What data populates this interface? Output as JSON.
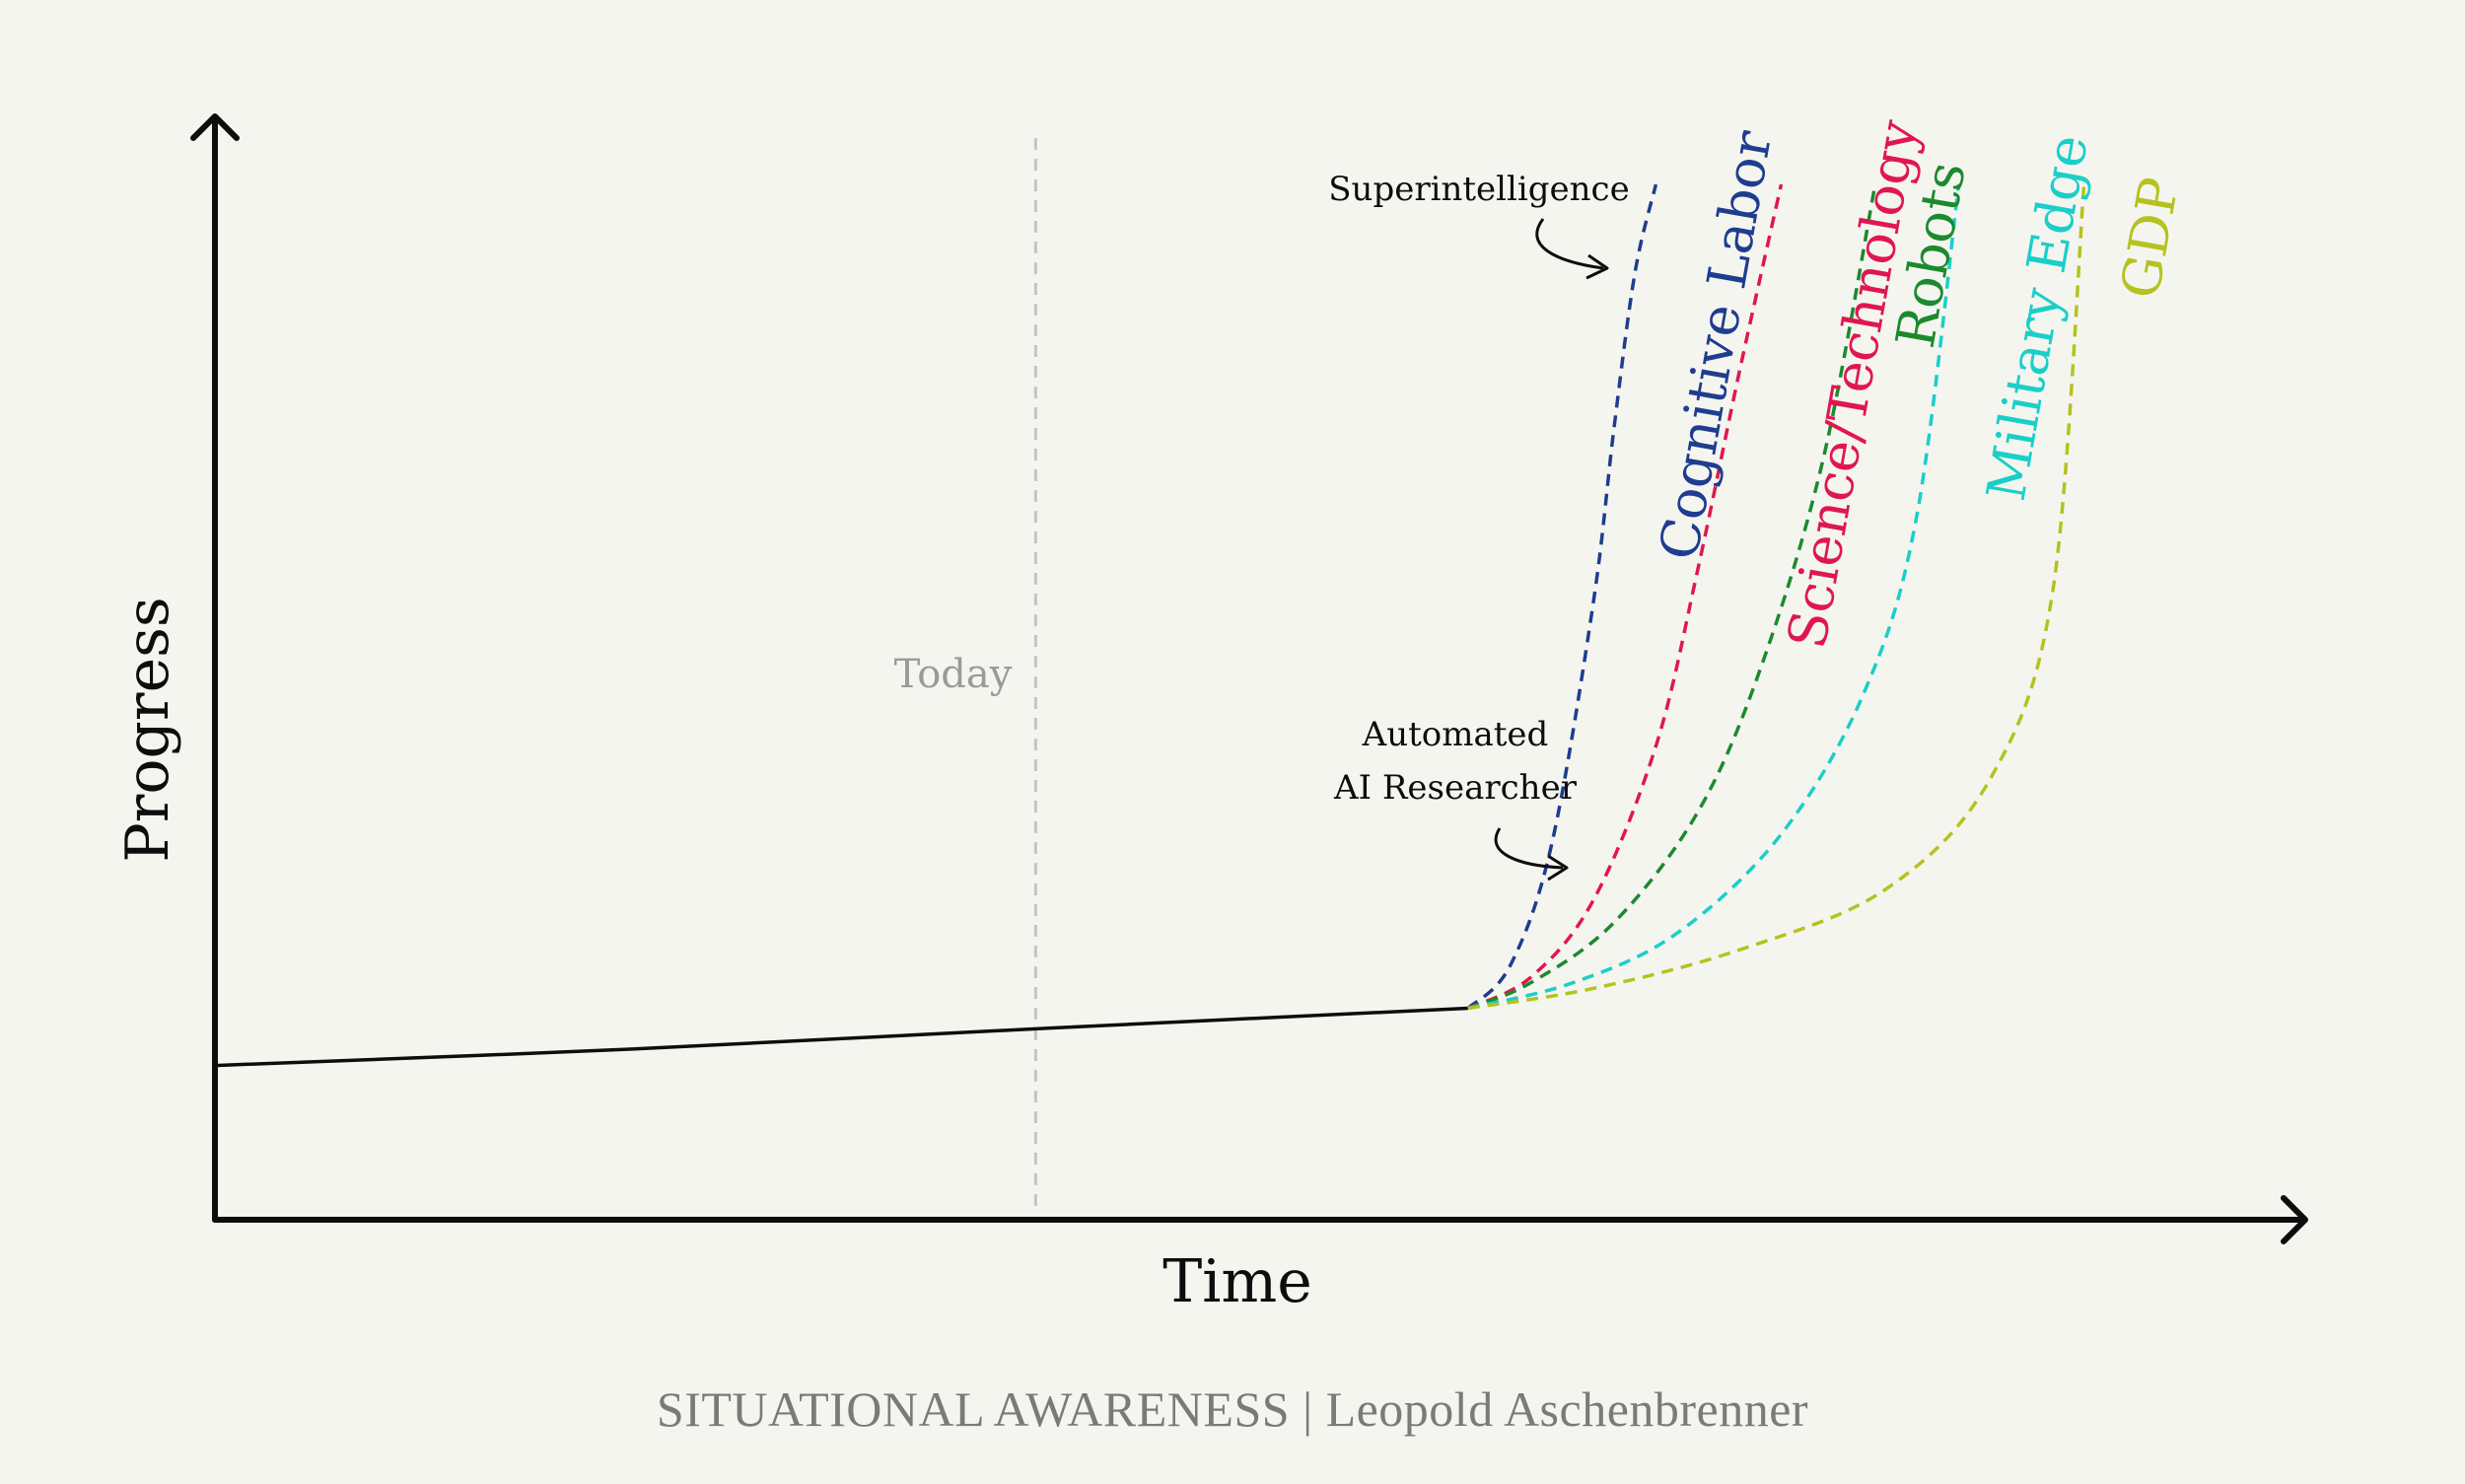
{
  "chart_data": {
    "type": "line",
    "xlabel": "Time",
    "ylabel": "Progress",
    "axis_tick_labels": "none",
    "grid": false,
    "legend": "none (series labeled inline along curves)",
    "x_range": [
      0,
      100
    ],
    "y_range": [
      0,
      100
    ],
    "baseline": {
      "x": [
        0,
        20,
        40,
        60
      ],
      "y": [
        14,
        15.5,
        17.4,
        19.2
      ]
    },
    "today_marker": {
      "label": "Today",
      "x": 39.3
    },
    "series": [
      {
        "name": "Cognitive Labor",
        "color": "#1f3d8f",
        "x": [
          60,
          62,
          64,
          66,
          67,
          68,
          69
        ],
        "y": [
          19.2,
          23,
          34,
          56,
          72,
          86,
          94
        ]
      },
      {
        "name": "Science/Technology",
        "color": "#e0174f",
        "x": [
          60,
          63,
          66,
          69,
          71,
          73,
          75
        ],
        "y": [
          19.2,
          22,
          29,
          43,
          59,
          77,
          94
        ]
      },
      {
        "name": "Robots",
        "color": "#1b8a2e",
        "x": [
          60,
          63,
          67,
          71,
          74,
          77,
          79.5
        ],
        "y": [
          19.2,
          21.5,
          27,
          37,
          50,
          69,
          94
        ]
      },
      {
        "name": "Military Edge",
        "color": "#19cfc8",
        "x": [
          60,
          65,
          70,
          75,
          79,
          81.5,
          83.5
        ],
        "y": [
          19.2,
          21.5,
          26,
          35,
          48,
          64,
          94
        ]
      },
      {
        "name": "GDP",
        "color": "#b5c21f",
        "x": [
          60,
          66,
          73,
          80,
          85,
          88,
          89.5
        ],
        "y": [
          19.2,
          21,
          24.5,
          30,
          40,
          57,
          94
        ]
      }
    ],
    "annotations": [
      {
        "text_lines": [
          "Superintelligence"
        ]
      },
      {
        "text_lines": [
          "Automated",
          "AI Researcher"
        ]
      }
    ]
  },
  "footer": "SITUATIONAL AWARENESS | Leopold Aschenbrenner"
}
